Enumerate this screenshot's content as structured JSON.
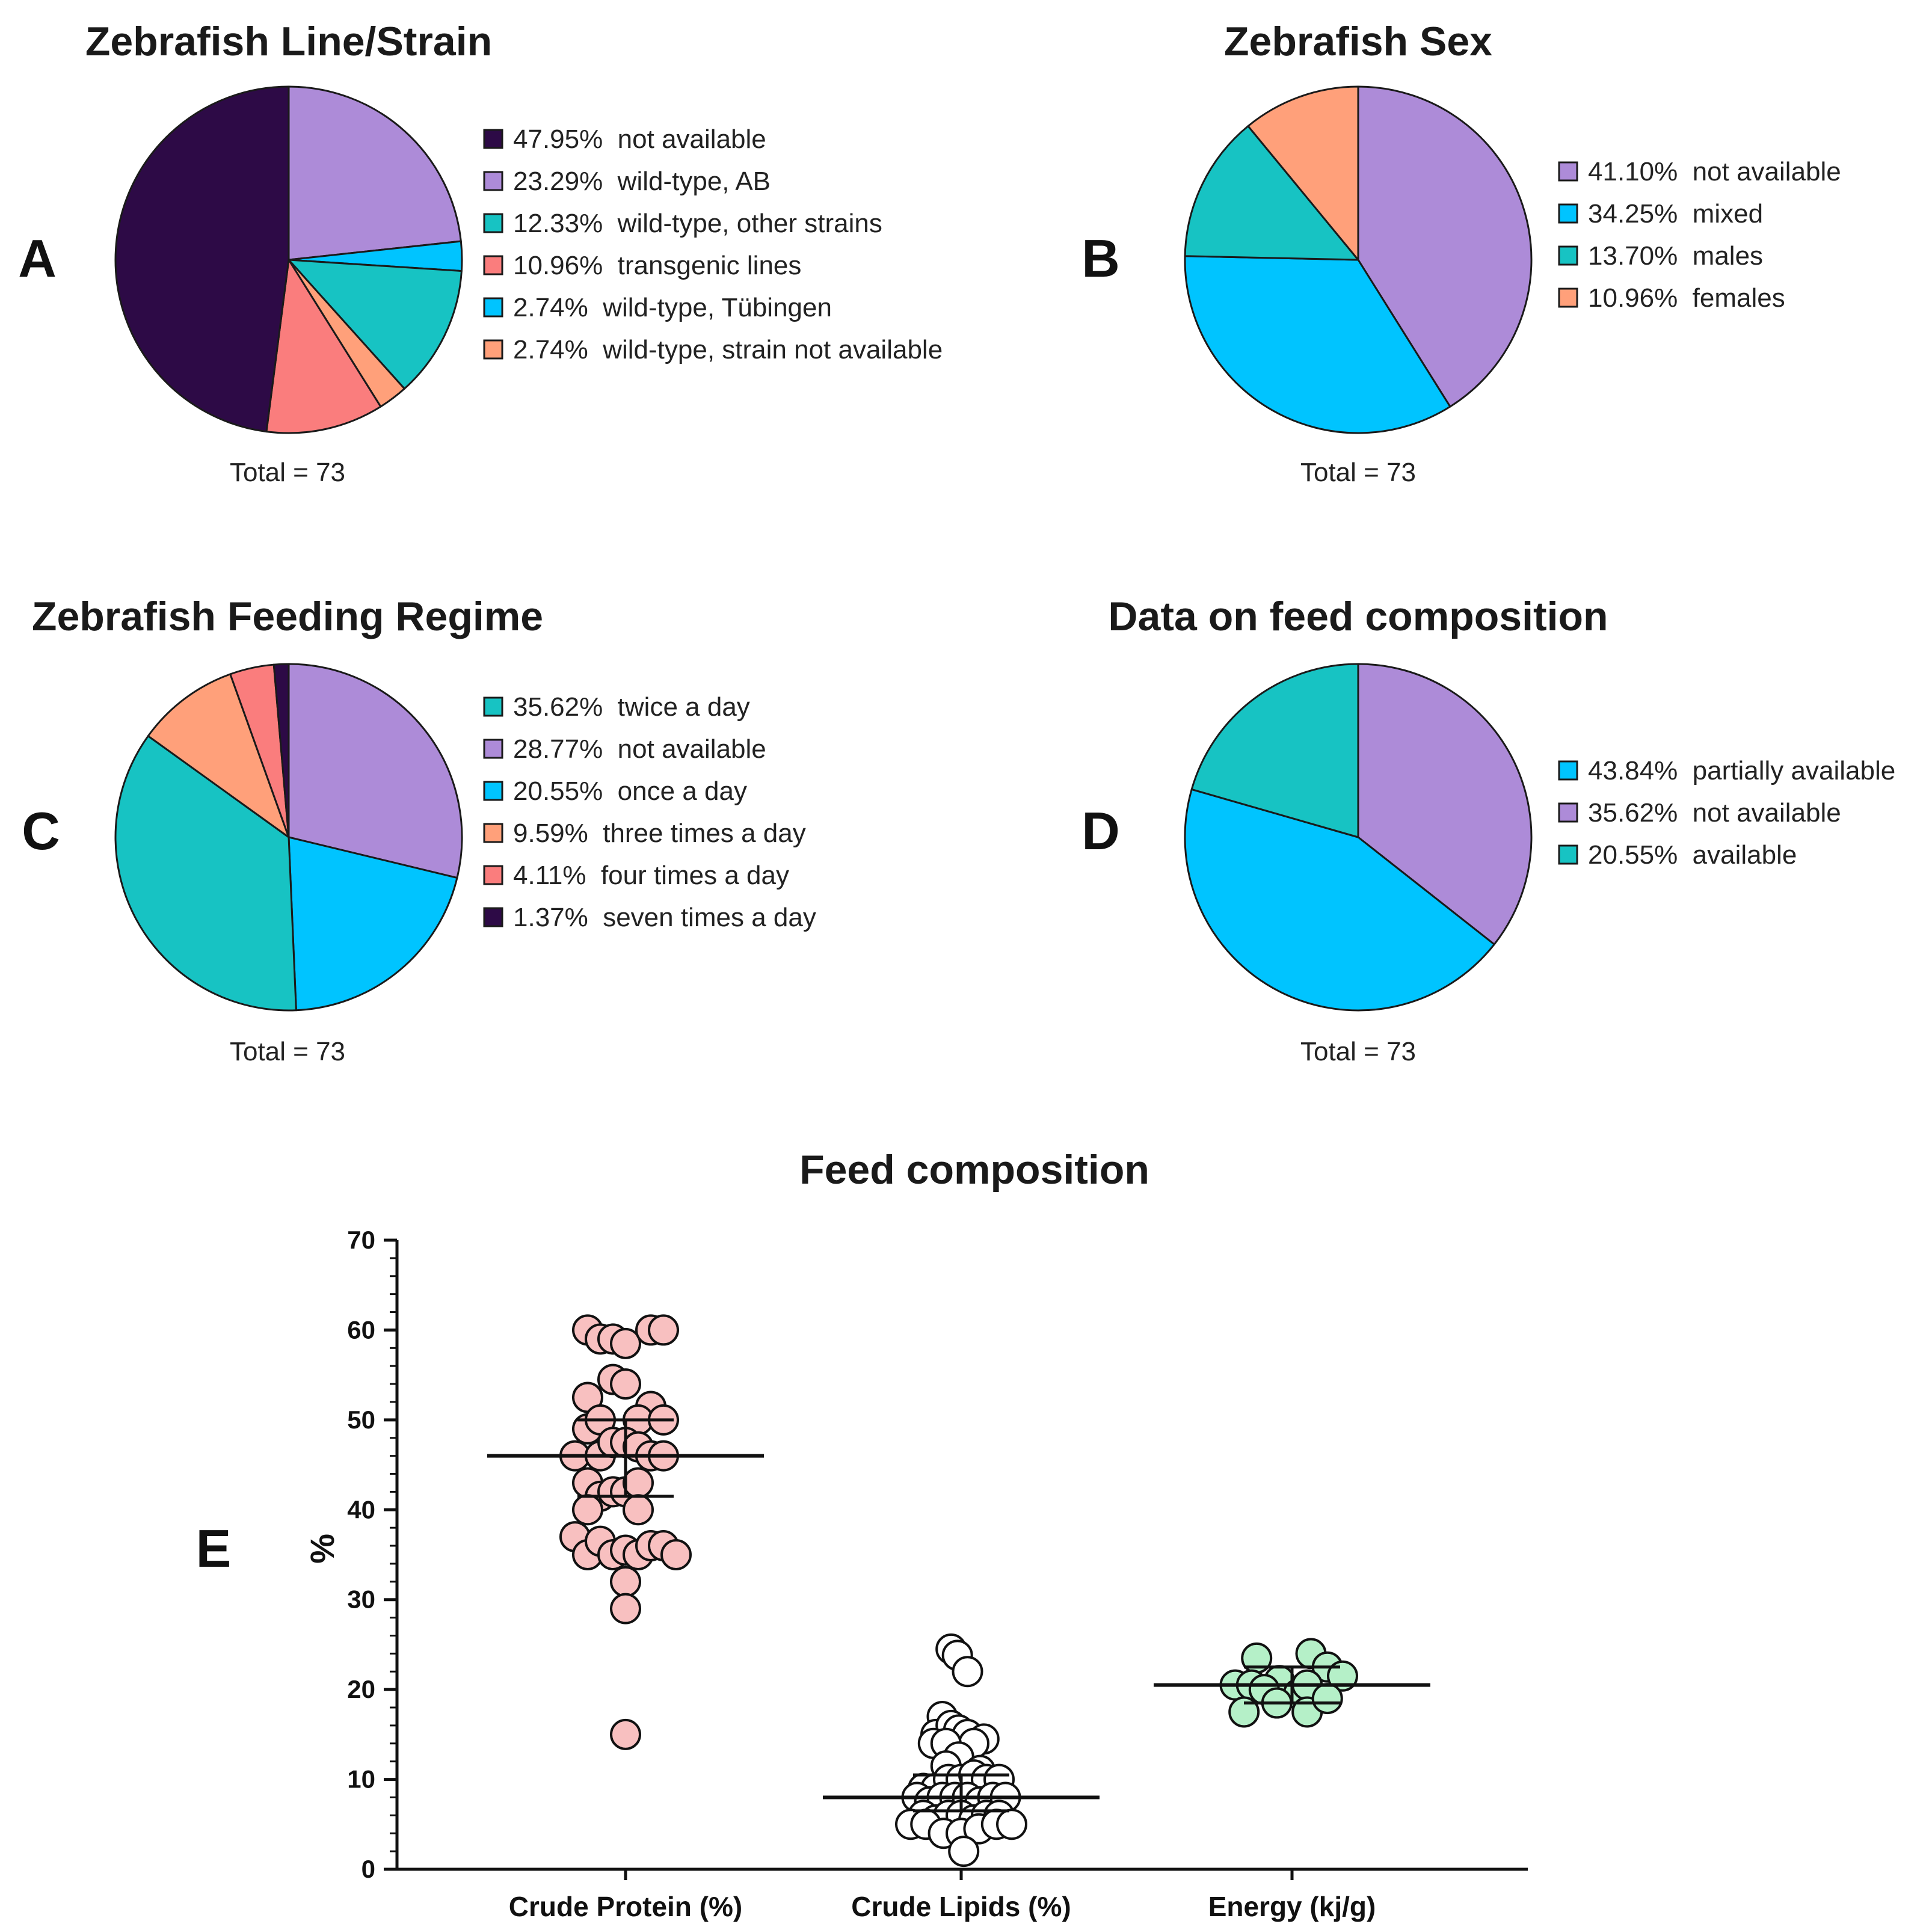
{
  "chart_data": [
    {
      "id": "A",
      "type": "pie",
      "panel_letter": "A",
      "title": "Zebrafish Line/Strain",
      "total_label": "Total = 73",
      "slices": [
        {
          "name": "not available",
          "value": 47.95,
          "label": "47.95%",
          "color": "#2d0a46"
        },
        {
          "name": "wild-type, AB",
          "value": 23.29,
          "label": "23.29%",
          "color": "#ad8bd8"
        },
        {
          "name": "wild-type, other strains",
          "value": 12.33,
          "label": "12.33%",
          "color": "#17c3c3"
        },
        {
          "name": "transgenic lines",
          "value": 10.96,
          "label": "10.96%",
          "color": "#fa7d7d"
        },
        {
          "name": "wild-type, Tübingen",
          "value": 2.74,
          "label": "2.74%",
          "color": "#00c4ff"
        },
        {
          "name": "wild-type, strain not available",
          "value": 2.74,
          "label": "2.74%",
          "color": "#ffa07a"
        }
      ],
      "draw_order": [
        "wild-type, AB",
        "wild-type, Tübingen",
        "wild-type, other strains",
        "wild-type, strain not available",
        "transgenic lines",
        "not available"
      ]
    },
    {
      "id": "B",
      "type": "pie",
      "panel_letter": "B",
      "title": "Zebrafish Sex",
      "total_label": "Total = 73",
      "slices": [
        {
          "name": "not available",
          "value": 41.1,
          "label": "41.10%",
          "color": "#ad8bd8"
        },
        {
          "name": "mixed",
          "value": 34.25,
          "label": "34.25%",
          "color": "#00c4ff"
        },
        {
          "name": "males",
          "value": 13.7,
          "label": "13.70%",
          "color": "#17c3c3"
        },
        {
          "name": "females",
          "value": 10.96,
          "label": "10.96%",
          "color": "#ffa07a"
        }
      ],
      "draw_order": [
        "not available",
        "mixed",
        "males",
        "females"
      ]
    },
    {
      "id": "C",
      "type": "pie",
      "panel_letter": "C",
      "title": "Zebrafish Feeding Regime",
      "total_label": "Total = 73",
      "slices": [
        {
          "name": "twice a day",
          "value": 35.62,
          "label": "35.62%",
          "color": "#17c3c3"
        },
        {
          "name": "not available",
          "value": 28.77,
          "label": "28.77%",
          "color": "#ad8bd8"
        },
        {
          "name": "once a day",
          "value": 20.55,
          "label": "20.55%",
          "color": "#00c4ff"
        },
        {
          "name": "three times a day",
          "value": 9.59,
          "label": "9.59%",
          "color": "#ffa07a"
        },
        {
          "name": "four times a day",
          "value": 4.11,
          "label": "4.11%",
          "color": "#fa7d7d"
        },
        {
          "name": "seven times a day",
          "value": 1.37,
          "label": "1.37%",
          "color": "#2d0a46"
        }
      ],
      "draw_order": [
        "not available",
        "once a day",
        "twice a day",
        "three times a day",
        "four times a day",
        "seven times a day"
      ]
    },
    {
      "id": "D",
      "type": "pie",
      "panel_letter": "D",
      "title": "Data on feed composition",
      "total_label": "Total = 73",
      "slices": [
        {
          "name": "partially available",
          "value": 43.84,
          "label": "43.84%",
          "color": "#00c4ff"
        },
        {
          "name": "not available",
          "value": 35.62,
          "label": "35.62%",
          "color": "#ad8bd8"
        },
        {
          "name": "available",
          "value": 20.55,
          "label": "20.55%",
          "color": "#17c3c3"
        }
      ],
      "draw_order": [
        "not available",
        "partially available",
        "available"
      ]
    },
    {
      "id": "E",
      "type": "scatter",
      "panel_letter": "E",
      "title": "Feed composition",
      "ylabel": "%",
      "ylim": [
        0,
        70
      ],
      "yticks": [
        0,
        10,
        20,
        30,
        40,
        50,
        60,
        70
      ],
      "categories": [
        "Crude Protein (%)",
        "Crude Lipids (%)",
        "Energy (kj/g)"
      ],
      "series": [
        {
          "name": "Crude Protein (%)",
          "fill": "#f8c0c0",
          "median": 46,
          "q1": 41.5,
          "q3": 50,
          "points": [
            {
              "x": -0.3,
              "y": 60
            },
            {
              "x": -0.2,
              "y": 59
            },
            {
              "x": -0.1,
              "y": 59
            },
            {
              "x": 0.0,
              "y": 58.5
            },
            {
              "x": 0.2,
              "y": 60
            },
            {
              "x": 0.3,
              "y": 60
            },
            {
              "x": -0.1,
              "y": 54.5
            },
            {
              "x": 0.0,
              "y": 54
            },
            {
              "x": -0.3,
              "y": 52.5
            },
            {
              "x": 0.2,
              "y": 51.5
            },
            {
              "x": -0.3,
              "y": 49
            },
            {
              "x": -0.2,
              "y": 50
            },
            {
              "x": 0.1,
              "y": 50
            },
            {
              "x": 0.3,
              "y": 50
            },
            {
              "x": -0.4,
              "y": 46
            },
            {
              "x": -0.2,
              "y": 46
            },
            {
              "x": -0.1,
              "y": 47.5
            },
            {
              "x": 0.0,
              "y": 47.5
            },
            {
              "x": 0.1,
              "y": 47
            },
            {
              "x": 0.2,
              "y": 46
            },
            {
              "x": 0.3,
              "y": 46
            },
            {
              "x": -0.3,
              "y": 43
            },
            {
              "x": -0.2,
              "y": 41.5
            },
            {
              "x": -0.1,
              "y": 42
            },
            {
              "x": 0.0,
              "y": 42
            },
            {
              "x": 0.1,
              "y": 43
            },
            {
              "x": -0.3,
              "y": 40
            },
            {
              "x": 0.1,
              "y": 40
            },
            {
              "x": -0.4,
              "y": 37
            },
            {
              "x": -0.3,
              "y": 35
            },
            {
              "x": -0.2,
              "y": 36.5
            },
            {
              "x": -0.1,
              "y": 35
            },
            {
              "x": 0.0,
              "y": 35.5
            },
            {
              "x": 0.1,
              "y": 35
            },
            {
              "x": 0.2,
              "y": 36
            },
            {
              "x": 0.3,
              "y": 36
            },
            {
              "x": 0.4,
              "y": 35
            },
            {
              "x": 0.0,
              "y": 32
            },
            {
              "x": 0.0,
              "y": 29
            },
            {
              "x": 0.0,
              "y": 15
            }
          ]
        },
        {
          "name": "Crude Lipids (%)",
          "fill": "#ffffff",
          "median": 8,
          "q1": 6.5,
          "q3": 10.5,
          "points": [
            {
              "x": -0.08,
              "y": 24.5
            },
            {
              "x": -0.03,
              "y": 23.8
            },
            {
              "x": 0.05,
              "y": 22
            },
            {
              "x": -0.15,
              "y": 17
            },
            {
              "x": -0.2,
              "y": 15
            },
            {
              "x": -0.08,
              "y": 16
            },
            {
              "x": -0.02,
              "y": 15.5
            },
            {
              "x": 0.05,
              "y": 15
            },
            {
              "x": 0.18,
              "y": 14.5
            },
            {
              "x": 0.1,
              "y": 14
            },
            {
              "x": -0.22,
              "y": 14
            },
            {
              "x": -0.12,
              "y": 14
            },
            {
              "x": -0.02,
              "y": 12.5
            },
            {
              "x": 0.15,
              "y": 11
            },
            {
              "x": -0.12,
              "y": 11.5
            },
            {
              "x": -0.3,
              "y": 9
            },
            {
              "x": -0.2,
              "y": 9
            },
            {
              "x": -0.1,
              "y": 10
            },
            {
              "x": 0.0,
              "y": 10
            },
            {
              "x": 0.1,
              "y": 10.5
            },
            {
              "x": 0.2,
              "y": 10
            },
            {
              "x": 0.3,
              "y": 10
            },
            {
              "x": -0.35,
              "y": 8
            },
            {
              "x": -0.25,
              "y": 7.5
            },
            {
              "x": -0.15,
              "y": 8
            },
            {
              "x": -0.05,
              "y": 8
            },
            {
              "x": 0.05,
              "y": 8
            },
            {
              "x": 0.15,
              "y": 7.5
            },
            {
              "x": 0.25,
              "y": 8
            },
            {
              "x": 0.35,
              "y": 8
            },
            {
              "x": -0.3,
              "y": 6
            },
            {
              "x": -0.2,
              "y": 5.5
            },
            {
              "x": -0.1,
              "y": 6
            },
            {
              "x": 0.0,
              "y": 6
            },
            {
              "x": 0.1,
              "y": 5.5
            },
            {
              "x": 0.2,
              "y": 6
            },
            {
              "x": 0.3,
              "y": 6
            },
            {
              "x": -0.4,
              "y": 5
            },
            {
              "x": -0.28,
              "y": 5
            },
            {
              "x": -0.14,
              "y": 4
            },
            {
              "x": 0.0,
              "y": 4
            },
            {
              "x": 0.14,
              "y": 4.5
            },
            {
              "x": 0.28,
              "y": 5
            },
            {
              "x": 0.4,
              "y": 5
            },
            {
              "x": 0.02,
              "y": 2
            }
          ]
        },
        {
          "name": "Energy (kj/g)",
          "fill": "#b5f0c8",
          "median": 20.5,
          "q1": 18.5,
          "q3": 22.5,
          "points": [
            {
              "x": -0.28,
              "y": 23.5
            },
            {
              "x": 0.15,
              "y": 24
            },
            {
              "x": 0.28,
              "y": 22.5
            },
            {
              "x": 0.4,
              "y": 21.5
            },
            {
              "x": -0.1,
              "y": 21
            },
            {
              "x": -0.45,
              "y": 20.5
            },
            {
              "x": -0.32,
              "y": 20.5
            },
            {
              "x": -0.22,
              "y": 20
            },
            {
              "x": 0.05,
              "y": 19.5
            },
            {
              "x": 0.12,
              "y": 20.5
            },
            {
              "x": -0.38,
              "y": 17.5
            },
            {
              "x": -0.12,
              "y": 18.5
            },
            {
              "x": 0.12,
              "y": 17.5
            },
            {
              "x": 0.28,
              "y": 19
            }
          ]
        }
      ]
    }
  ]
}
